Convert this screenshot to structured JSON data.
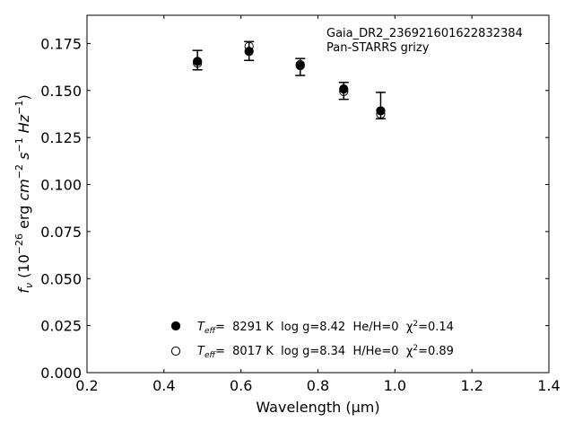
{
  "chart_data": {
    "type": "scatter",
    "title": "",
    "annotation": {
      "object_name": "Gaia_DR2_236921601622832384",
      "survey": "Pan-STARRS grizy"
    },
    "xlabel": "Wavelength (μm)",
    "ylabel": "f_ν (10^-26 erg cm^-2 s^-1 Hz^-1)",
    "xlim": [
      0.2,
      1.4
    ],
    "ylim": [
      0.0,
      0.19
    ],
    "xticks": [
      0.2,
      0.4,
      0.6,
      0.8,
      1.0,
      1.2,
      1.4
    ],
    "xtick_labels": [
      "0.2",
      "0.4",
      "0.6",
      "0.8",
      "1.0",
      "1.2",
      "1.4"
    ],
    "yticks": [
      0.0,
      0.025,
      0.05,
      0.075,
      0.1,
      0.125,
      0.15,
      0.175
    ],
    "ytick_labels": [
      "0.000",
      "0.025",
      "0.050",
      "0.075",
      "0.100",
      "0.125",
      "0.150",
      "0.175"
    ],
    "grid": false,
    "legend_position": "bottom-center",
    "observed": {
      "x": [
        0.487,
        0.621,
        0.754,
        0.867,
        0.963
      ],
      "y": [
        0.1665,
        0.171,
        0.1625,
        0.1498,
        0.1415
      ],
      "yerr_low": [
        0.0055,
        0.005,
        0.0045,
        0.0045,
        0.0065
      ],
      "yerr_high": [
        0.0048,
        0.005,
        0.0045,
        0.0045,
        0.0075
      ]
    },
    "series": [
      {
        "name": "T_eff=  8291 K  log g=8.42  He/H=0  χ²=0.14",
        "legend_teff_label": "T",
        "legend_teff_sub": "eff",
        "legend_values": "=  8291 K  log g=8.42  He/H=0  χ",
        "legend_chi_sup": "2",
        "legend_chi_val": "=0.14",
        "marker": "filled-circle",
        "x": [
          0.487,
          0.621,
          0.754,
          0.867,
          0.963
        ],
        "y": [
          0.1655,
          0.1708,
          0.1632,
          0.1508,
          0.1392
        ]
      },
      {
        "name": "T_eff=  8017 K  log g=8.34  H/He=0  χ²=0.89",
        "legend_teff_label": "T",
        "legend_teff_sub": "eff",
        "legend_values": "=  8017 K  log g=8.34  H/He=0  χ",
        "legend_chi_sup": "2",
        "legend_chi_val": "=0.89",
        "marker": "open-circle",
        "x": [
          0.487,
          0.621,
          0.754,
          0.867,
          0.963
        ],
        "y": [
          0.1645,
          0.1735,
          0.1638,
          0.1495,
          0.1375
        ]
      }
    ]
  }
}
